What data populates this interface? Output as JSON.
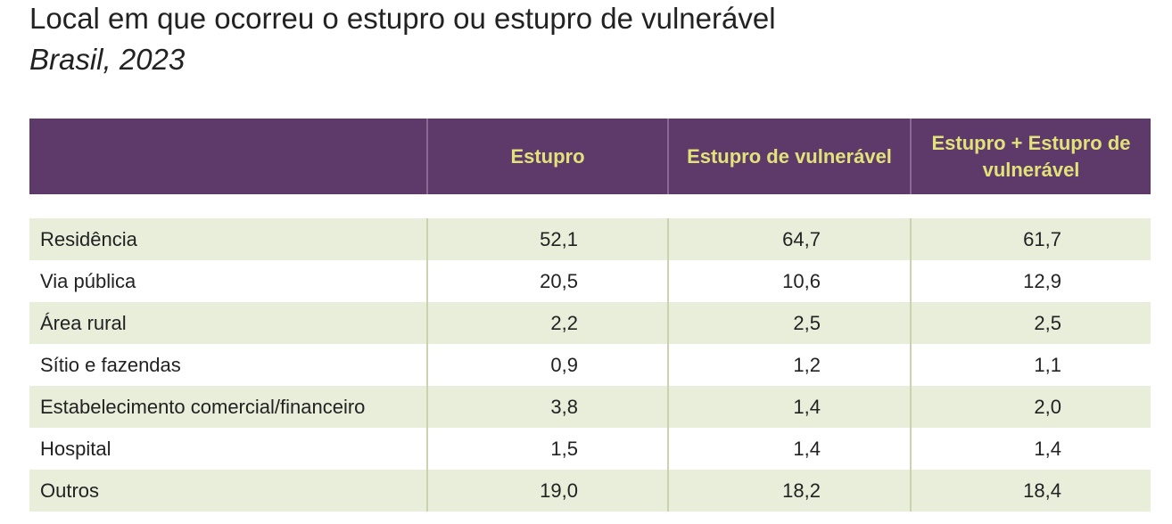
{
  "header": {
    "title": "Local em que ocorreu o estupro ou estupro de vulnerável",
    "subtitle": "Brasil, 2023"
  },
  "table": {
    "columns": [
      "Estupro",
      "Estupro de vulnerável",
      "Estupro + Estupro de vulnerável"
    ],
    "rows": [
      [
        "Residência",
        "52,1",
        "64,7",
        "61,7"
      ],
      [
        "Via pública",
        "20,5",
        "10,6",
        "12,9"
      ],
      [
        "Área rural",
        "2,2",
        "2,5",
        "2,5"
      ],
      [
        "Sítio e fazendas",
        "0,9",
        "1,2",
        "1,1"
      ],
      [
        "Estabelecimento comercial/financeiro",
        "3,8",
        "1,4",
        "2,0"
      ],
      [
        "Hospital",
        "1,5",
        "1,4",
        "1,4"
      ],
      [
        "Outros",
        "19,0",
        "18,2",
        "18,4"
      ]
    ]
  }
}
